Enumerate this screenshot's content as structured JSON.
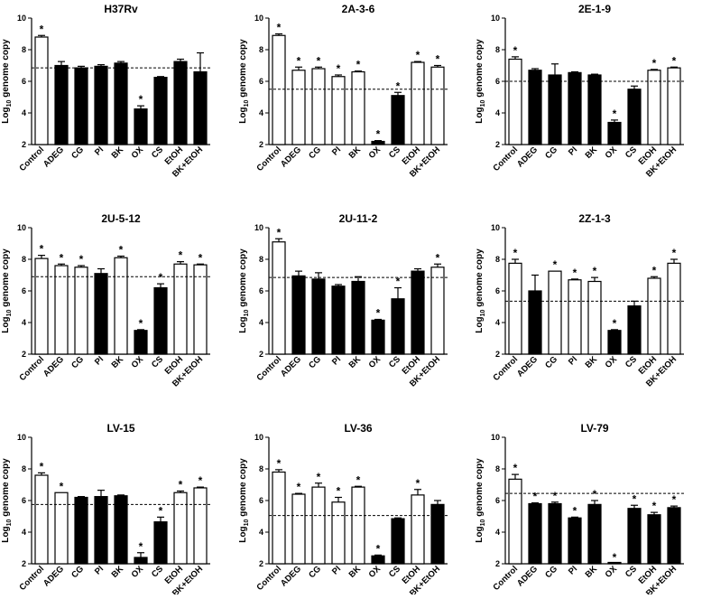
{
  "figure_caption": "",
  "categories": [
    "Control",
    "ADEG",
    "CG",
    "PI",
    "BK",
    "OX",
    "CS",
    "EtOH",
    "BK+EtOH"
  ],
  "y_label_prefix": "Log",
  "y_label_sub": "10",
  "y_label_suffix": " genome copy",
  "star_symbol": "*",
  "colors": {
    "open_bar": "#ffffff",
    "filled_bar": "#000000",
    "axis": "#000000"
  },
  "chart_data": [
    {
      "type": "bar",
      "title": "H37Rv",
      "ylim": [
        2,
        10
      ],
      "yticks": [
        2,
        4,
        6,
        8,
        10
      ],
      "baseline": 6.85,
      "values": [
        8.8,
        7.0,
        6.85,
        6.95,
        7.15,
        4.25,
        6.25,
        7.25,
        6.6
      ],
      "errors": [
        0.1,
        0.25,
        0.1,
        0.1,
        0.1,
        0.2,
        0.05,
        0.15,
        1.2
      ],
      "filled": [
        false,
        true,
        true,
        true,
        true,
        true,
        true,
        true,
        true
      ],
      "significant": [
        true,
        false,
        false,
        false,
        false,
        true,
        false,
        false,
        false
      ]
    },
    {
      "type": "bar",
      "title": "2A-3-6",
      "ylim": [
        2,
        10
      ],
      "yticks": [
        2,
        4,
        6,
        8,
        10
      ],
      "baseline": 5.5,
      "values": [
        8.9,
        6.7,
        6.8,
        6.3,
        6.6,
        2.2,
        5.1,
        7.2,
        6.9
      ],
      "errors": [
        0.1,
        0.2,
        0.1,
        0.1,
        0.05,
        0.05,
        0.2,
        0.05,
        0.1
      ],
      "filled": [
        false,
        false,
        false,
        false,
        false,
        true,
        true,
        false,
        false
      ],
      "significant": [
        true,
        true,
        true,
        true,
        true,
        true,
        true,
        true,
        true
      ]
    },
    {
      "type": "bar",
      "title": "2E-1-9",
      "ylim": [
        2,
        10
      ],
      "yticks": [
        2,
        4,
        6,
        8,
        10
      ],
      "baseline": 6.0,
      "values": [
        7.4,
        6.7,
        6.4,
        6.55,
        6.4,
        3.4,
        5.5,
        6.7,
        6.85
      ],
      "errors": [
        0.15,
        0.1,
        0.7,
        0.05,
        0.05,
        0.15,
        0.2,
        0.05,
        0.05
      ],
      "filled": [
        false,
        true,
        true,
        true,
        true,
        true,
        true,
        false,
        false
      ],
      "significant": [
        true,
        false,
        false,
        false,
        false,
        true,
        false,
        true,
        true
      ]
    },
    {
      "type": "bar",
      "title": "2U-5-12",
      "ylim": [
        2,
        10
      ],
      "yticks": [
        2,
        4,
        6,
        8,
        10
      ],
      "baseline": 6.9,
      "values": [
        8.05,
        7.6,
        7.5,
        7.1,
        8.1,
        3.5,
        6.2,
        7.7,
        7.65
      ],
      "errors": [
        0.2,
        0.1,
        0.1,
        0.3,
        0.1,
        0.05,
        0.25,
        0.15,
        0.05
      ],
      "filled": [
        false,
        false,
        false,
        true,
        false,
        true,
        true,
        false,
        false
      ],
      "significant": [
        true,
        true,
        true,
        false,
        true,
        true,
        true,
        true,
        true
      ]
    },
    {
      "type": "bar",
      "title": "2U-11-2",
      "ylim": [
        2,
        10
      ],
      "yticks": [
        2,
        4,
        6,
        8,
        10
      ],
      "baseline": 6.85,
      "values": [
        9.1,
        6.95,
        6.75,
        6.3,
        6.6,
        4.15,
        5.5,
        7.25,
        7.5
      ],
      "errors": [
        0.2,
        0.3,
        0.4,
        0.1,
        0.3,
        0.05,
        0.7,
        0.15,
        0.2
      ],
      "filled": [
        false,
        true,
        true,
        true,
        true,
        true,
        true,
        true,
        false
      ],
      "significant": [
        true,
        false,
        false,
        false,
        false,
        true,
        true,
        false,
        true
      ]
    },
    {
      "type": "bar",
      "title": "2Z-1-3",
      "ylim": [
        2,
        10
      ],
      "yticks": [
        2,
        4,
        6,
        8,
        10
      ],
      "baseline": 5.35,
      "values": [
        7.75,
        6.0,
        7.25,
        6.7,
        6.6,
        3.5,
        5.05,
        6.8,
        7.75
      ],
      "errors": [
        0.25,
        1.0,
        0.0,
        0.05,
        0.25,
        0.05,
        0.3,
        0.1,
        0.25
      ],
      "filled": [
        false,
        true,
        false,
        false,
        false,
        true,
        true,
        false,
        false
      ],
      "significant": [
        true,
        false,
        true,
        true,
        true,
        true,
        false,
        true,
        true
      ]
    },
    {
      "type": "bar",
      "title": "LV-15",
      "ylim": [
        2,
        10
      ],
      "yticks": [
        2,
        4,
        6,
        8,
        10
      ],
      "baseline": 5.75,
      "values": [
        7.6,
        6.5,
        6.2,
        6.25,
        6.3,
        2.4,
        4.65,
        6.5,
        6.8
      ],
      "errors": [
        0.15,
        0.0,
        0.05,
        0.4,
        0.05,
        0.3,
        0.3,
        0.1,
        0.05
      ],
      "filled": [
        false,
        false,
        true,
        true,
        true,
        true,
        true,
        false,
        false
      ],
      "significant": [
        true,
        true,
        false,
        false,
        false,
        true,
        true,
        true,
        true
      ]
    },
    {
      "type": "bar",
      "title": "LV-36",
      "ylim": [
        2,
        10
      ],
      "yticks": [
        2,
        4,
        6,
        8,
        10
      ],
      "baseline": 5.05,
      "values": [
        7.8,
        6.4,
        6.85,
        5.9,
        6.85,
        2.5,
        4.85,
        6.35,
        5.75
      ],
      "errors": [
        0.15,
        0.05,
        0.25,
        0.3,
        0.05,
        0.05,
        0.05,
        0.35,
        0.25
      ],
      "filled": [
        false,
        false,
        false,
        false,
        false,
        true,
        true,
        false,
        true
      ],
      "significant": [
        true,
        true,
        true,
        true,
        true,
        true,
        false,
        true,
        false
      ]
    },
    {
      "type": "bar",
      "title": "LV-79",
      "ylim": [
        2,
        10
      ],
      "yticks": [
        2,
        4,
        6,
        8,
        10
      ],
      "baseline": 6.45,
      "values": [
        7.35,
        5.8,
        5.8,
        4.9,
        5.75,
        2.0,
        5.5,
        5.1,
        5.55
      ],
      "errors": [
        0.3,
        0.05,
        0.1,
        0.05,
        0.25,
        0.0,
        0.2,
        0.15,
        0.1
      ],
      "filled": [
        false,
        true,
        true,
        true,
        true,
        true,
        true,
        true,
        true
      ],
      "significant": [
        true,
        true,
        true,
        true,
        true,
        true,
        true,
        true,
        true
      ]
    }
  ]
}
